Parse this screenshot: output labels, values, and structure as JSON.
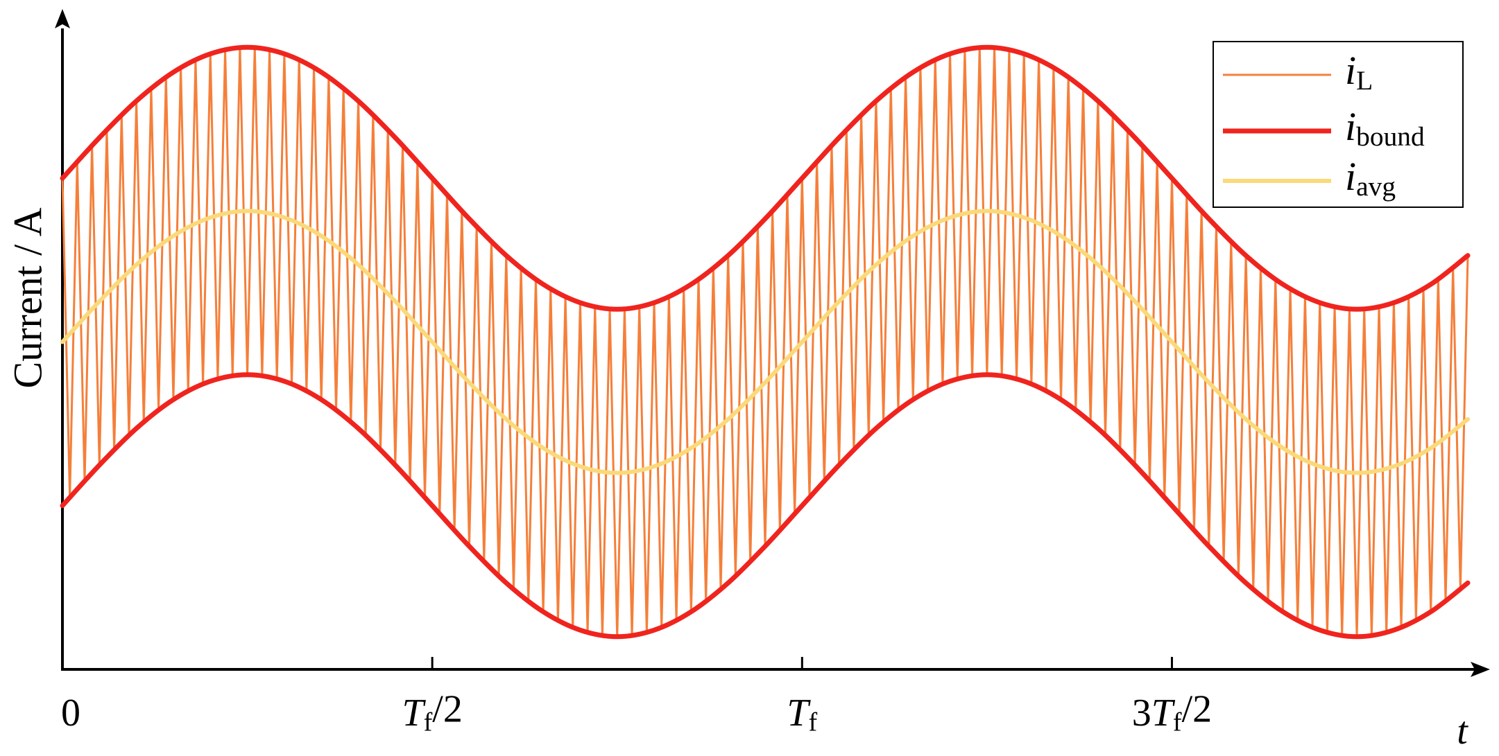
{
  "chart_data": {
    "type": "line",
    "x_label": "t",
    "y_label": "Current / A",
    "xlim": [
      0,
      1.93
    ],
    "ylim": [
      0,
      10
    ],
    "xticks": [
      0,
      {
        "value": 0.5,
        "label": "Tf/2"
      },
      {
        "value": 1,
        "label": "Tf"
      },
      {
        "value": 1.5,
        "label": "3Tf/2"
      }
    ],
    "legend": "upper right",
    "series": [
      {
        "name": "iL",
        "color": "#f57f3a",
        "x": [
          0,
          0.01,
          0.02,
          0.03,
          0.04,
          0.05,
          0.06,
          0.07,
          0.08,
          0.09,
          0.1,
          0.11,
          0.12,
          0.13,
          0.14,
          0.15,
          0.16,
          0.17,
          0.18,
          0.19,
          0.2,
          0.21,
          0.22,
          0.23,
          0.24,
          0.25,
          0.26,
          0.27,
          0.28,
          0.29,
          0.3,
          0.31,
          0.32,
          0.33,
          0.34,
          0.35,
          0.36,
          0.37,
          0.38,
          0.39,
          0.4,
          0.41,
          0.42,
          0.43,
          0.44,
          0.45,
          0.46,
          0.47,
          0.48,
          0.49,
          0.5,
          0.51,
          0.52,
          0.53,
          0.54,
          0.55,
          0.56,
          0.57,
          0.58,
          0.59,
          0.6,
          0.61,
          0.62,
          0.63,
          0.64,
          0.65,
          0.66,
          0.67,
          0.68,
          0.69,
          0.7,
          0.71,
          0.72,
          0.73,
          0.74,
          0.75,
          0.76,
          0.77,
          0.78,
          0.79,
          0.8,
          0.81,
          0.82,
          0.83,
          0.84,
          0.85,
          0.86,
          0.87,
          0.88,
          0.89,
          0.9,
          0.91,
          0.92,
          0.93,
          0.94,
          0.95,
          0.96,
          0.97,
          0.98,
          0.99,
          1,
          1.01,
          1.02,
          1.03,
          1.04,
          1.05,
          1.06,
          1.07,
          1.08,
          1.09,
          1.1,
          1.11,
          1.12,
          1.13,
          1.14,
          1.15,
          1.16,
          1.17,
          1.18,
          1.19,
          1.2,
          1.21,
          1.22,
          1.23,
          1.24,
          1.25,
          1.26,
          1.27,
          1.28,
          1.29,
          1.3,
          1.31,
          1.32,
          1.33,
          1.34,
          1.35,
          1.36,
          1.37,
          1.38,
          1.39,
          1.4,
          1.41,
          1.42,
          1.43,
          1.44,
          1.45,
          1.46,
          1.47,
          1.48,
          1.49,
          1.5,
          1.51,
          1.52,
          1.53,
          1.54,
          1.55,
          1.56,
          1.57,
          1.58,
          1.59,
          1.6,
          1.61,
          1.62,
          1.63,
          1.64,
          1.65,
          1.66,
          1.67,
          1.68,
          1.69,
          1.7,
          1.71,
          1.72,
          1.73,
          1.74,
          1.75,
          1.76,
          1.77,
          1.78,
          1.79,
          1.8,
          1.81,
          1.82,
          1.83,
          1.84,
          1.85,
          1.86,
          1.87,
          1.88,
          1.89,
          1.9
        ],
        "values": [
          7.5,
          2.63,
          7.75,
          2.87,
          8.0,
          3.12,
          8.24,
          3.35,
          8.46,
          3.57,
          8.68,
          3.77,
          8.87,
          3.96,
          9.04,
          4.12,
          9.19,
          4.25,
          9.31,
          4.36,
          9.4,
          4.44,
          9.46,
          4.48,
          9.5,
          4.5,
          9.5,
          4.48,
          9.46,
          4.44,
          9.4,
          4.36,
          9.31,
          4.25,
          9.19,
          4.12,
          9.04,
          3.96,
          8.87,
          3.77,
          8.68,
          3.57,
          8.46,
          3.35,
          8.24,
          3.12,
          8.0,
          2.87,
          7.75,
          2.63,
          7.5,
          2.37,
          7.25,
          2.13,
          7.0,
          1.88,
          6.76,
          1.65,
          6.54,
          1.43,
          6.32,
          1.23,
          6.13,
          1.04,
          5.96,
          0.88,
          5.81,
          0.75,
          5.69,
          0.64,
          5.6,
          0.56,
          5.54,
          0.52,
          5.5,
          0.5,
          5.5,
          0.52,
          5.54,
          0.56,
          5.6,
          0.64,
          5.69,
          0.75,
          5.81,
          0.88,
          5.96,
          1.04,
          6.13,
          1.23,
          6.32,
          1.43,
          6.54,
          1.65,
          6.76,
          1.88,
          7.0,
          2.13,
          7.25,
          2.37,
          7.5,
          2.63,
          7.75,
          2.87,
          8.0,
          3.12,
          8.24,
          3.35,
          8.46,
          3.57,
          8.68,
          3.77,
          8.87,
          3.96,
          9.04,
          4.12,
          9.19,
          4.25,
          9.31,
          4.36,
          9.4,
          4.44,
          9.46,
          4.48,
          9.5,
          4.5,
          9.5,
          4.48,
          9.46,
          4.44,
          9.4,
          4.36,
          9.31,
          4.25,
          9.19,
          4.12,
          9.04,
          3.96,
          8.87,
          3.77,
          8.68,
          3.57,
          8.46,
          3.35,
          8.24,
          3.12,
          8.0,
          2.87,
          7.75,
          2.63,
          7.5,
          2.37,
          7.25,
          2.13,
          7.0,
          1.88,
          6.76,
          1.65,
          6.54,
          1.43,
          6.32,
          1.23,
          6.13,
          1.04,
          5.96,
          0.88,
          5.81,
          0.75,
          5.69,
          0.64,
          5.6,
          0.56,
          5.54,
          0.52,
          5.5,
          0.5,
          5.5,
          0.52,
          5.54,
          0.56,
          5.6,
          0.64,
          5.69,
          0.75,
          5.81,
          0.88,
          5.96,
          1.04,
          6.13,
          1.23,
          6.32
        ]
      },
      {
        "name": "ibound",
        "color": "#f0241e",
        "x": [
          0,
          0.05,
          0.1,
          0.15,
          0.2,
          0.25,
          0.3,
          0.35,
          0.4,
          0.45,
          0.5,
          0.55,
          0.6,
          0.65,
          0.7,
          0.75,
          0.8,
          0.85,
          0.9,
          0.95,
          1,
          1.05,
          1.1,
          1.15,
          1.2,
          1.25,
          1.3,
          1.35,
          1.4,
          1.45,
          1.5,
          1.55,
          1.6,
          1.65,
          1.7,
          1.75,
          1.8,
          1.85,
          1.9
        ],
        "values": [
          7.5,
          8.12,
          8.68,
          9.12,
          9.4,
          9.5,
          9.4,
          9.12,
          8.68,
          8.12,
          7.5,
          6.88,
          6.32,
          5.88,
          5.6,
          5.5,
          5.6,
          5.88,
          6.32,
          6.88,
          7.5,
          8.12,
          8.68,
          9.12,
          9.4,
          9.5,
          9.4,
          9.12,
          8.68,
          8.12,
          7.5,
          6.88,
          6.32,
          5.88,
          5.6,
          5.5,
          5.6,
          5.88,
          6.32
        ],
        "lower": [
          2.5,
          3.12,
          3.68,
          4.12,
          4.4,
          4.5,
          4.4,
          4.12,
          3.68,
          3.12,
          2.5,
          1.88,
          1.32,
          0.88,
          0.6,
          0.5,
          0.6,
          0.88,
          1.32,
          1.88,
          2.5,
          3.12,
          3.68,
          4.12,
          4.4,
          4.5,
          4.4,
          4.12,
          3.68,
          3.12,
          2.5,
          1.88,
          1.32,
          0.88,
          0.6,
          0.5,
          0.6,
          0.88,
          1.32
        ]
      },
      {
        "name": "iavg",
        "color": "#fbd97a",
        "x": [
          0,
          0.05,
          0.1,
          0.15,
          0.2,
          0.25,
          0.3,
          0.35,
          0.4,
          0.45,
          0.5,
          0.55,
          0.6,
          0.65,
          0.7,
          0.75,
          0.8,
          0.85,
          0.9,
          0.95,
          1,
          1.05,
          1.1,
          1.15,
          1.2,
          1.25,
          1.3,
          1.35,
          1.4,
          1.45,
          1.5,
          1.55,
          1.6,
          1.65,
          1.7,
          1.75,
          1.8,
          1.85,
          1.9
        ],
        "values": [
          5,
          5.62,
          6.18,
          6.62,
          6.9,
          7,
          6.9,
          6.62,
          6.18,
          5.62,
          5,
          4.38,
          3.82,
          3.38,
          3.1,
          3,
          3.1,
          3.38,
          3.82,
          4.38,
          5,
          5.62,
          6.18,
          6.62,
          6.9,
          7,
          6.9,
          6.62,
          6.18,
          5.62,
          5,
          4.38,
          3.82,
          3.38,
          3.1,
          3,
          3.1,
          3.38,
          3.82
        ]
      }
    ]
  }
}
